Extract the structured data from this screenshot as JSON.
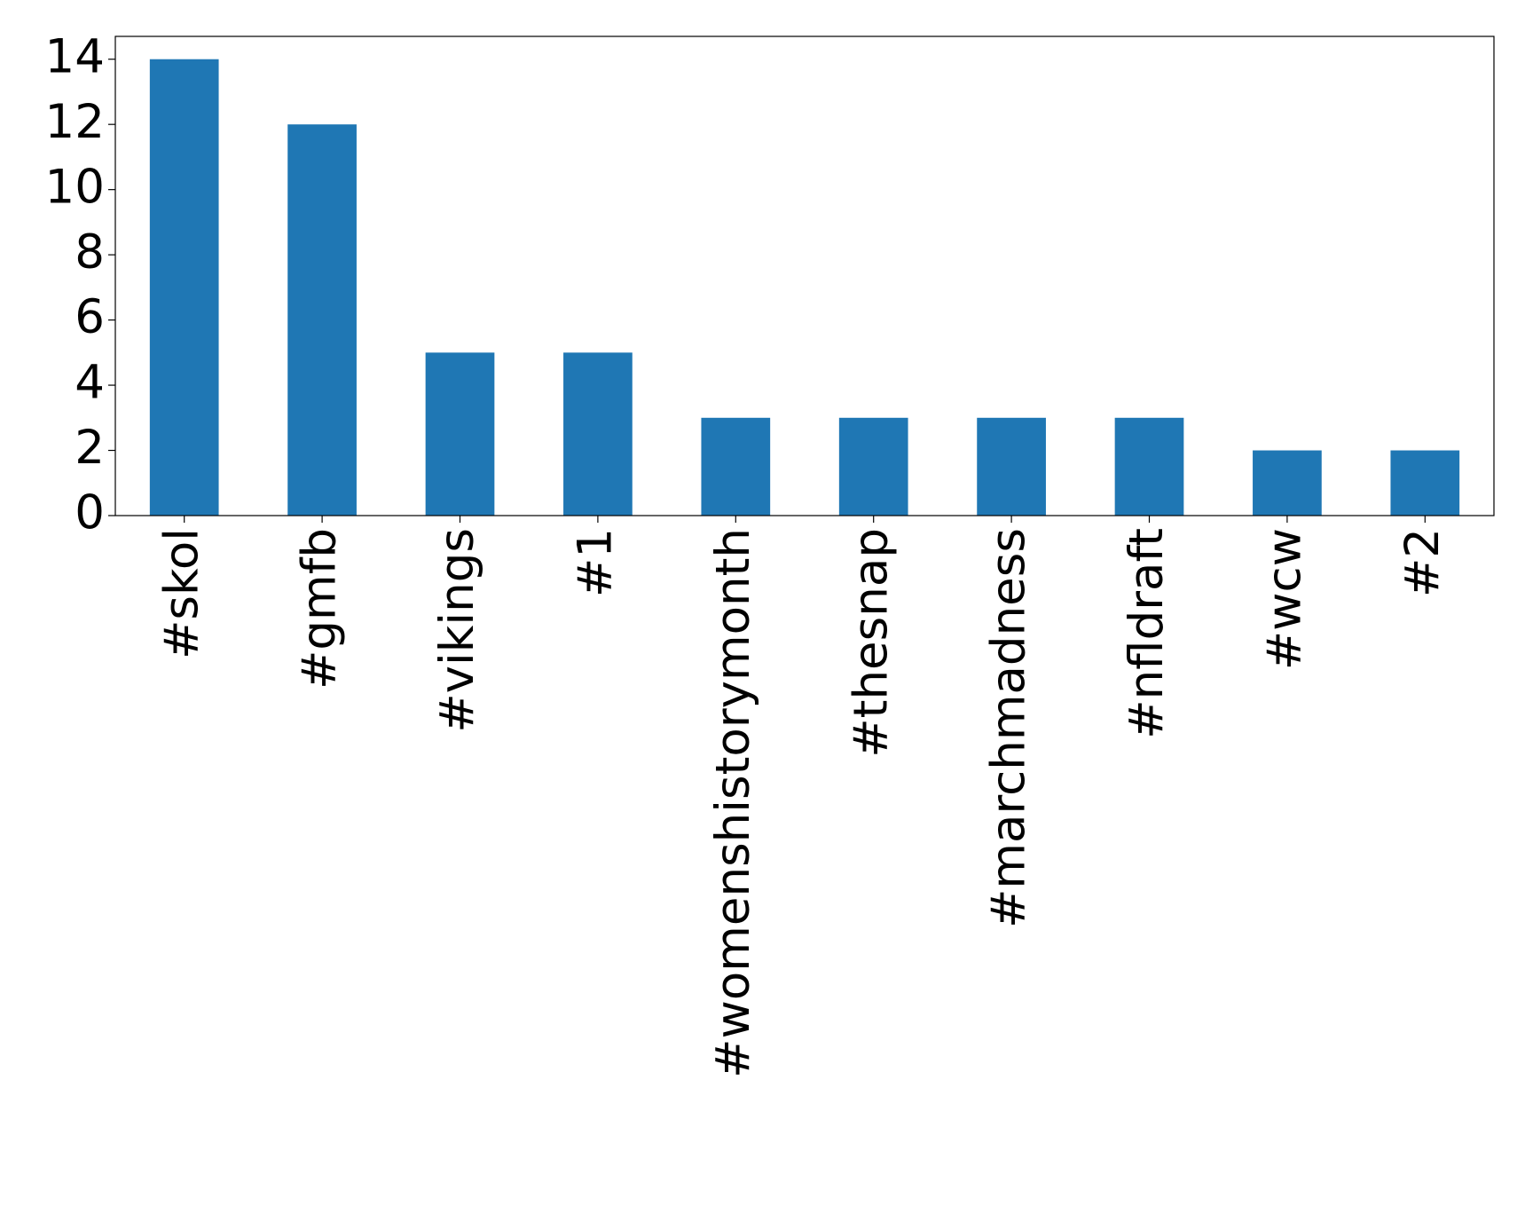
{
  "chart_data": {
    "type": "bar",
    "categories": [
      "#skol",
      "#gmfb",
      "#vikings",
      "#1",
      "#womenshistorymonth",
      "#thesnap",
      "#marchmadness",
      "#nfldraft",
      "#wcw",
      "#2"
    ],
    "values": [
      14,
      12,
      5,
      5,
      3,
      3,
      3,
      3,
      2,
      2
    ],
    "color": "#1f77b4",
    "ylim": [
      0,
      14.7
    ],
    "yticks": [
      0,
      2,
      4,
      6,
      8,
      10,
      12,
      14
    ],
    "grid": false
  }
}
